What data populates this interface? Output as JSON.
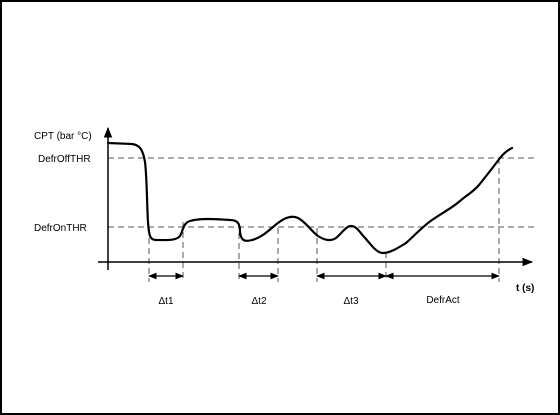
{
  "diagram": {
    "y_axis_label": "CPT (bar °C)",
    "x_axis_label": "t (s)",
    "thresholds": {
      "off": "DefrOffTHR",
      "on": "DefrOnTHR"
    },
    "intervals": [
      {
        "label": "Δt1"
      },
      {
        "label": "Δt2"
      },
      {
        "label": "Δt3"
      },
      {
        "label": "DefrAct"
      }
    ],
    "colors": {
      "line": "#000000",
      "dashed": "#555555",
      "border": "#000000"
    }
  }
}
